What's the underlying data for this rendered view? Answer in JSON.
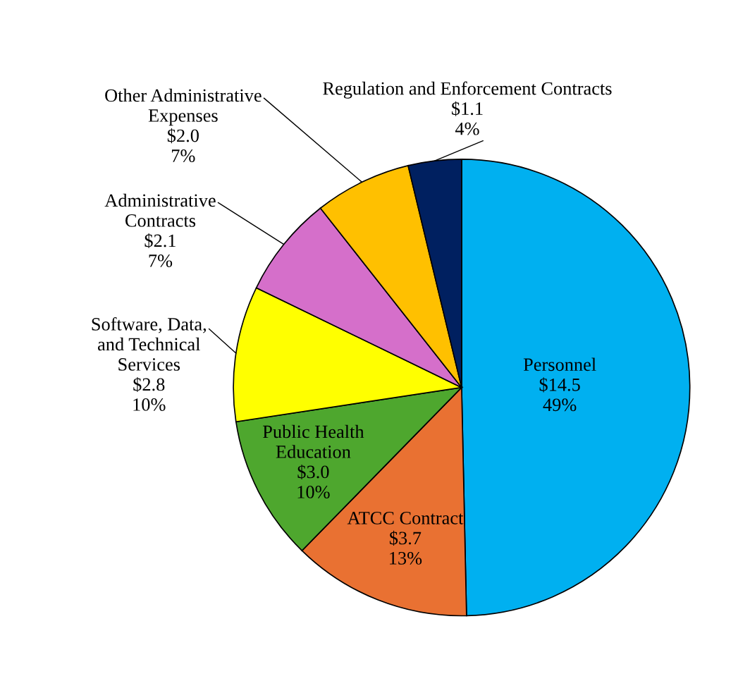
{
  "chart_data": {
    "type": "pie",
    "categories": [
      "Personnel",
      "ATCC Contract",
      "Public Health\nEducation",
      "Software, Data,\nand Technical\nServices",
      "Administrative\nContracts",
      "Other Administrative\nExpenses",
      "Regulation and Enforcement Contracts"
    ],
    "values": [
      14.5,
      3.7,
      3.0,
      2.8,
      2.1,
      2.0,
      1.1
    ],
    "value_labels": [
      "$14.5\n49%",
      "$3.7\n13%",
      "$3.0\n10%",
      "$2.8\n10%",
      "$2.1\n7%",
      "$2.0\n7%",
      "$1.1\n4%"
    ],
    "colors": [
      "#00b0f0",
      "#e97132",
      "#4ea72e",
      "#ffff00",
      "#d56fca",
      "#ffc000",
      "#002060"
    ]
  }
}
